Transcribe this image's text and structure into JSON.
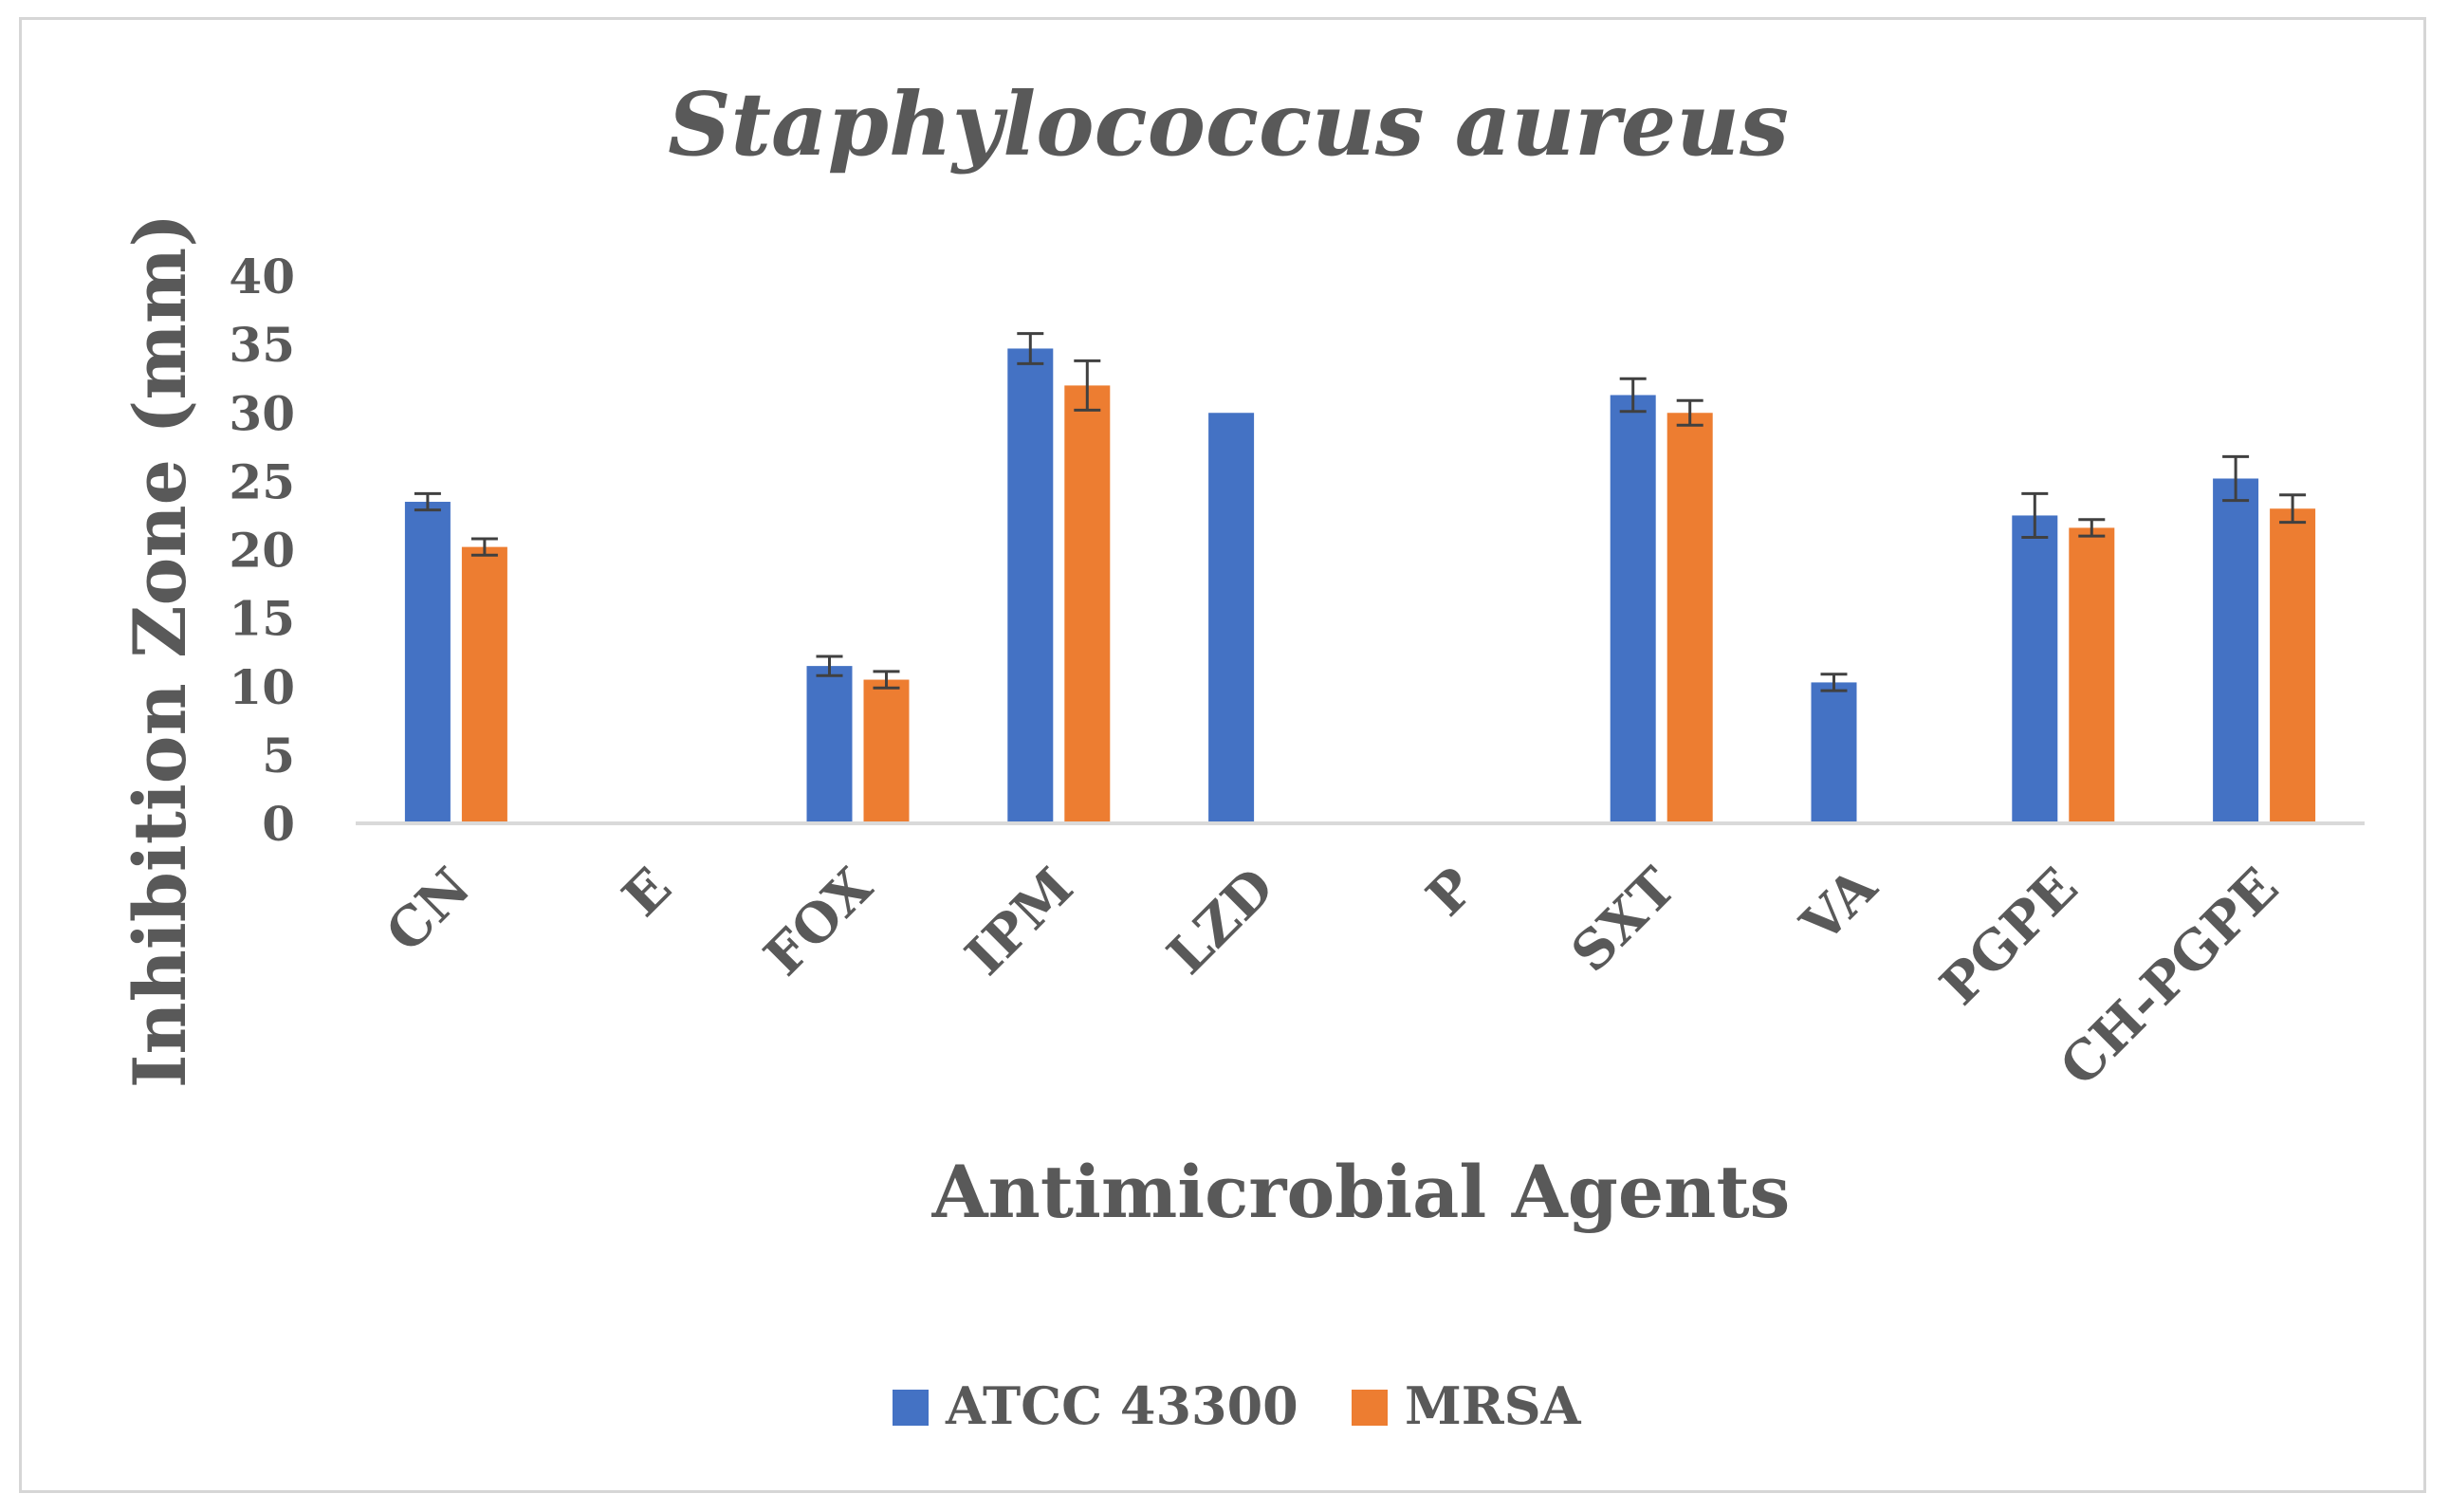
{
  "chart_data": {
    "type": "bar",
    "title": "Staphylococcus aureus",
    "xlabel": "Antimicrobial Agents",
    "ylabel": "Inhibition Zone (mm)",
    "ylim": [
      0,
      40
    ],
    "yticks": [
      0,
      5,
      10,
      15,
      20,
      25,
      30,
      35,
      40
    ],
    "grid": false,
    "legend_position": "bottom",
    "categories": [
      "CN",
      "E",
      "FOX",
      "IPM",
      "LZD",
      "P",
      "SXT",
      "VA",
      "PGPE",
      "CH-PGPE"
    ],
    "series": [
      {
        "name": "ATCC 43300",
        "color": "#4472c4",
        "values": [
          23.5,
          0,
          11.5,
          34.7,
          30.0,
          0,
          31.3,
          10.3,
          22.5,
          25.2
        ],
        "errors": [
          0.6,
          0,
          0.7,
          1.1,
          0,
          0,
          1.2,
          0.6,
          1.6,
          1.6
        ]
      },
      {
        "name": "MRSA",
        "color": "#ed7d31",
        "values": [
          20.2,
          0,
          10.5,
          32.0,
          0,
          0,
          30.0,
          0,
          21.6,
          23.0
        ],
        "errors": [
          0.6,
          0,
          0.6,
          1.8,
          0,
          0,
          0.9,
          0,
          0.6,
          1.0
        ]
      }
    ]
  }
}
